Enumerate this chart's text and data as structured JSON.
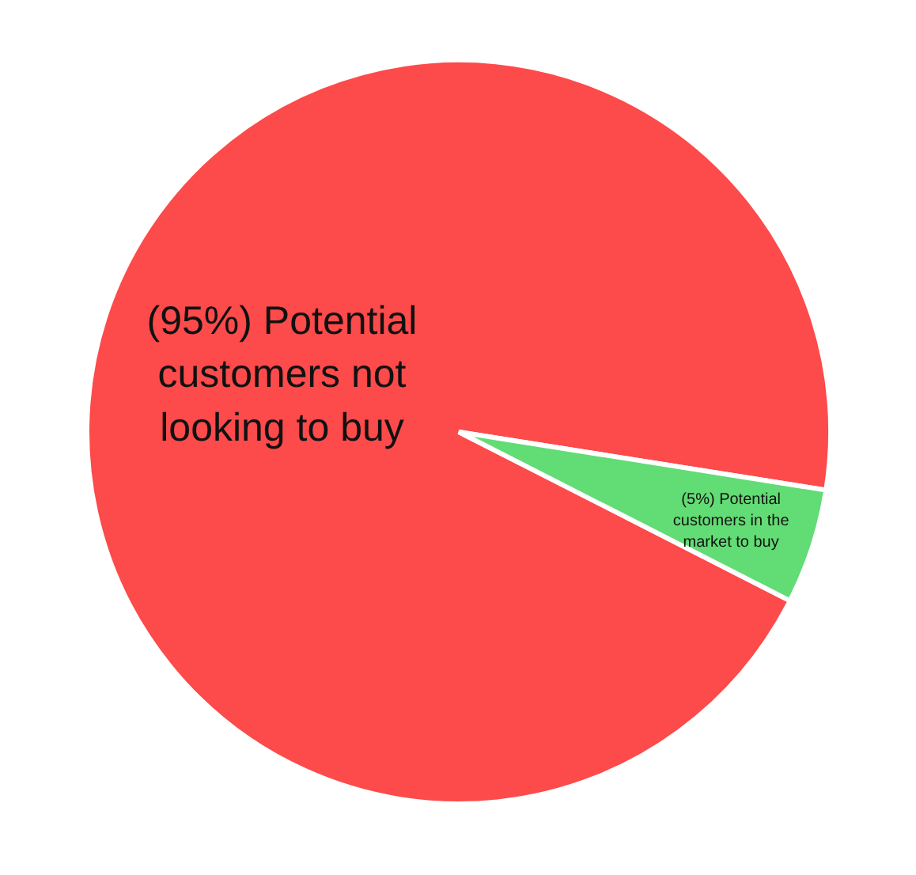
{
  "chart_data": {
    "type": "pie",
    "categories": [
      "Potential customers not looking to buy",
      "Potential customers in the market to buy"
    ],
    "values": [
      95,
      5
    ],
    "value_labels": [
      "(95%)",
      "(5%)"
    ],
    "colors": [
      "#fd4a4a",
      "#62dc74"
    ],
    "legend": false
  }
}
